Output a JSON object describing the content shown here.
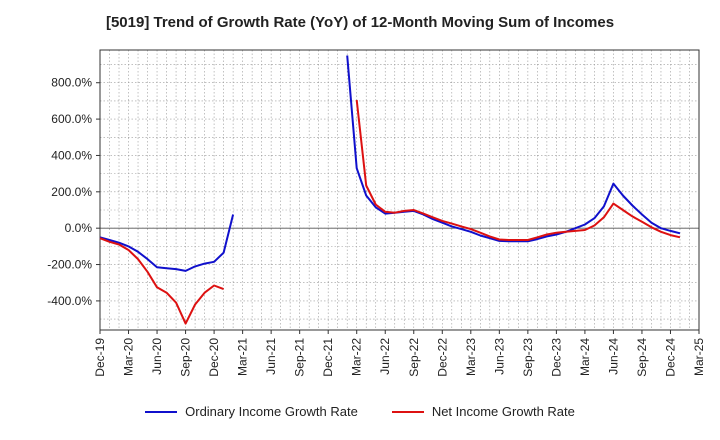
{
  "chart_data": {
    "type": "line",
    "title": "[5019]  Trend of Growth Rate (YoY) of 12-Month Moving Sum of Incomes",
    "xlabel": "",
    "ylabel": "",
    "x_ticks": [
      "Dec-19",
      "Mar-20",
      "Jun-20",
      "Sep-20",
      "Dec-20",
      "Mar-21",
      "Jun-21",
      "Sep-21",
      "Dec-21",
      "Mar-22",
      "Jun-22",
      "Sep-22",
      "Dec-22",
      "Mar-23",
      "Jun-23",
      "Sep-23",
      "Dec-23",
      "Mar-24",
      "Jun-24",
      "Sep-24",
      "Dec-24",
      "Mar-25"
    ],
    "y_ticks": [
      -400,
      -200,
      0,
      200,
      400,
      600,
      800
    ],
    "y_tick_labels": [
      "-400.0%",
      "-200.0%",
      "0.0%",
      "200.0%",
      "400.0%",
      "600.0%",
      "800.0%"
    ],
    "ylim": [
      -560,
      980
    ],
    "grid": true,
    "legend_position": "bottom",
    "series": [
      {
        "name": "Ordinary Income Growth Rate",
        "color": "#1010cc",
        "points": [
          [
            "Dec-19",
            -50
          ],
          [
            "Jan-20",
            -65
          ],
          [
            "Feb-20",
            -80
          ],
          [
            "Mar-20",
            -100
          ],
          [
            "Apr-20",
            -130
          ],
          [
            "May-20",
            -170
          ],
          [
            "Jun-20",
            -215
          ],
          [
            "Jul-20",
            -220
          ],
          [
            "Aug-20",
            -225
          ],
          [
            "Sep-20",
            -235
          ],
          [
            "Oct-20",
            -210
          ],
          [
            "Nov-20",
            -195
          ],
          [
            "Dec-20",
            -185
          ],
          [
            "Jan-21",
            -135
          ],
          [
            "Feb-21",
            75
          ],
          [
            "Feb-22",
            950
          ],
          [
            "Mar-22",
            330
          ],
          [
            "Apr-22",
            180
          ],
          [
            "May-22",
            115
          ],
          [
            "Jun-22",
            80
          ],
          [
            "Jul-22",
            85
          ],
          [
            "Aug-22",
            90
          ],
          [
            "Sep-22",
            95
          ],
          [
            "Oct-22",
            75
          ],
          [
            "Nov-22",
            50
          ],
          [
            "Dec-22",
            30
          ],
          [
            "Jan-23",
            10
          ],
          [
            "Feb-23",
            -5
          ],
          [
            "Mar-23",
            -20
          ],
          [
            "Apr-23",
            -40
          ],
          [
            "May-23",
            -55
          ],
          [
            "Jun-23",
            -70
          ],
          [
            "Jul-23",
            -72
          ],
          [
            "Aug-23",
            -72
          ],
          [
            "Sep-23",
            -72
          ],
          [
            "Oct-23",
            -60
          ],
          [
            "Nov-23",
            -45
          ],
          [
            "Dec-23",
            -35
          ],
          [
            "Jan-24",
            -20
          ],
          [
            "Feb-24",
            0
          ],
          [
            "Mar-24",
            20
          ],
          [
            "Apr-24",
            55
          ],
          [
            "May-24",
            120
          ],
          [
            "Jun-24",
            245
          ],
          [
            "Jul-24",
            180
          ],
          [
            "Aug-24",
            125
          ],
          [
            "Sep-24",
            75
          ],
          [
            "Oct-24",
            30
          ],
          [
            "Nov-24",
            0
          ],
          [
            "Dec-24",
            -15
          ],
          [
            "Jan-25",
            -28
          ]
        ]
      },
      {
        "name": "Net Income Growth Rate",
        "color": "#dd1111",
        "points": [
          [
            "Dec-19",
            -55
          ],
          [
            "Jan-20",
            -75
          ],
          [
            "Feb-20",
            -90
          ],
          [
            "Mar-20",
            -120
          ],
          [
            "Apr-20",
            -170
          ],
          [
            "May-20",
            -240
          ],
          [
            "Jun-20",
            -325
          ],
          [
            "Jul-20",
            -355
          ],
          [
            "Aug-20",
            -410
          ],
          [
            "Sep-20",
            -525
          ],
          [
            "Oct-20",
            -420
          ],
          [
            "Nov-20",
            -355
          ],
          [
            "Dec-20",
            -315
          ],
          [
            "Jan-21",
            -335
          ],
          [
            "Mar-22",
            705
          ],
          [
            "Apr-22",
            235
          ],
          [
            "May-22",
            130
          ],
          [
            "Jun-22",
            90
          ],
          [
            "Jul-22",
            85
          ],
          [
            "Aug-22",
            95
          ],
          [
            "Sep-22",
            100
          ],
          [
            "Oct-22",
            80
          ],
          [
            "Nov-22",
            60
          ],
          [
            "Dec-22",
            40
          ],
          [
            "Jan-23",
            25
          ],
          [
            "Feb-23",
            10
          ],
          [
            "Mar-23",
            -5
          ],
          [
            "Apr-23",
            -25
          ],
          [
            "May-23",
            -45
          ],
          [
            "Jun-23",
            -62
          ],
          [
            "Jul-23",
            -65
          ],
          [
            "Aug-23",
            -65
          ],
          [
            "Sep-23",
            -65
          ],
          [
            "Oct-23",
            -50
          ],
          [
            "Nov-23",
            -35
          ],
          [
            "Dec-23",
            -25
          ],
          [
            "Jan-24",
            -20
          ],
          [
            "Feb-24",
            -15
          ],
          [
            "Mar-24",
            -10
          ],
          [
            "Apr-24",
            15
          ],
          [
            "May-24",
            60
          ],
          [
            "Jun-24",
            135
          ],
          [
            "Jul-24",
            100
          ],
          [
            "Aug-24",
            65
          ],
          [
            "Sep-24",
            35
          ],
          [
            "Oct-24",
            5
          ],
          [
            "Nov-24",
            -20
          ],
          [
            "Dec-24",
            -38
          ],
          [
            "Jan-25",
            -50
          ]
        ]
      }
    ]
  }
}
